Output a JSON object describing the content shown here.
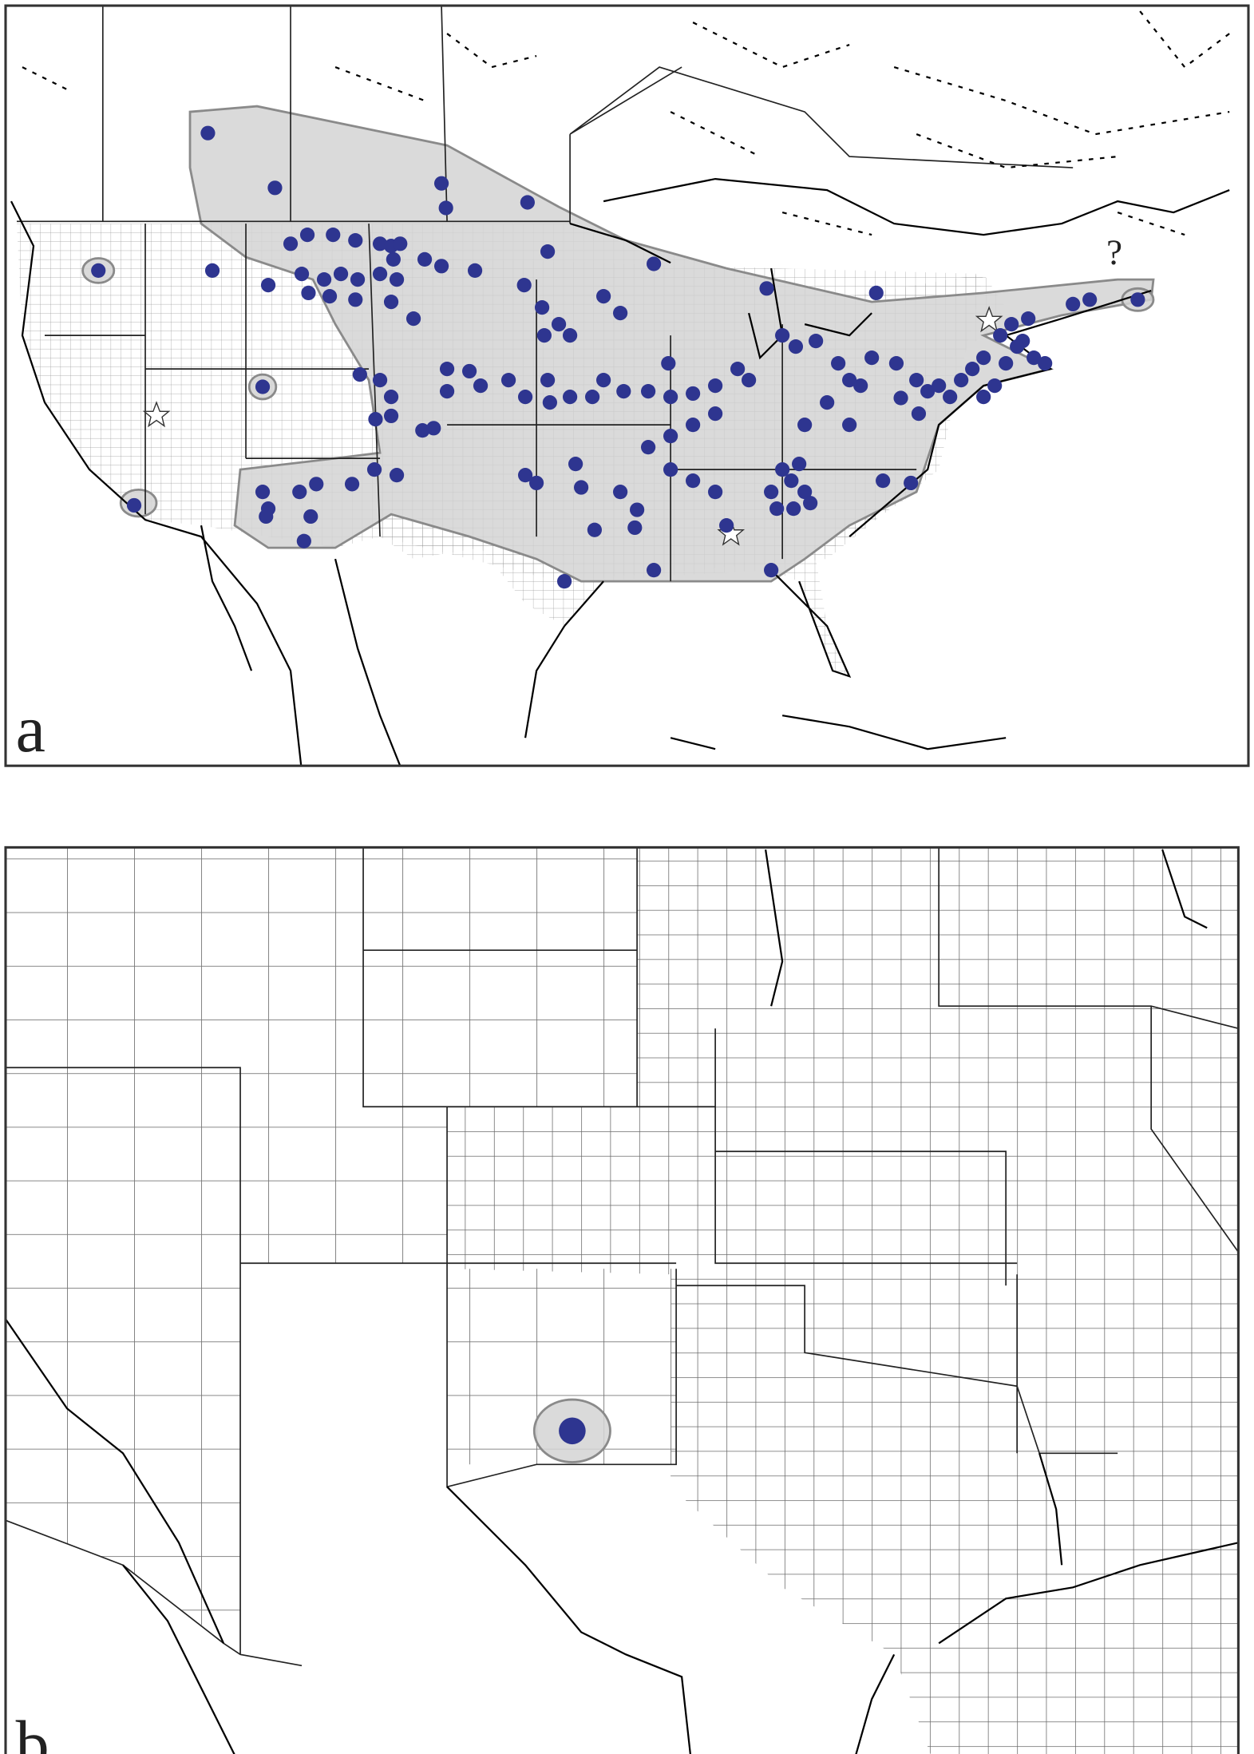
{
  "panels": [
    {
      "label": "a",
      "annotation": "?"
    },
    {
      "label": "b"
    }
  ]
}
